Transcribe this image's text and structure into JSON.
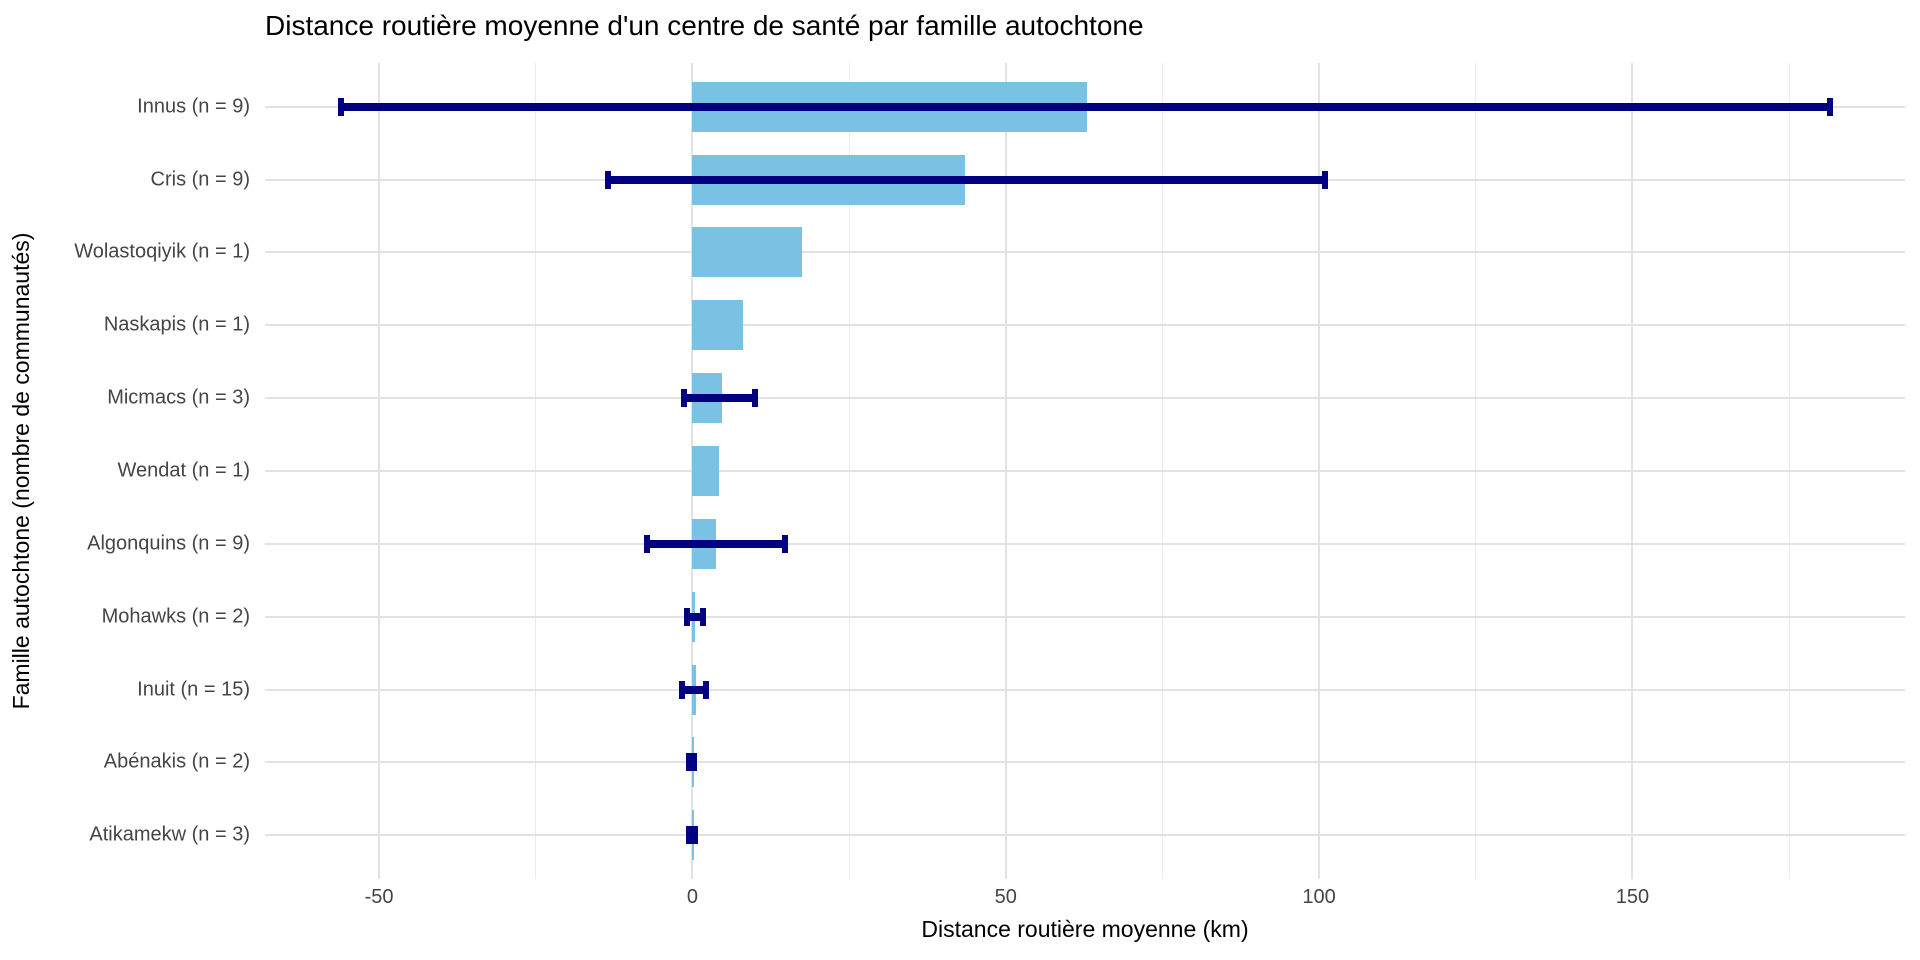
{
  "chart_data": {
    "type": "bar",
    "orientation": "horizontal",
    "title": "Distance routière moyenne d'un centre de santé par famille autochtone",
    "xlabel": "Distance routière moyenne (km)",
    "ylabel": "Famille autochtone (nombre de communautés)",
    "xlim": [
      -68.2,
      193.5
    ],
    "x_major_ticks": [
      -50,
      0,
      50,
      100,
      150
    ],
    "x_minor_ticks": [
      -25,
      25,
      75,
      125,
      175
    ],
    "grid": true,
    "legend": false,
    "colors": {
      "bar_fill": "#7AC2E3",
      "error_bar": "#000080",
      "grid_major": "#E2E2E2",
      "grid_minor": "#EBEBEB",
      "tick_text": "#454545",
      "title_text": "#000000"
    },
    "rows": [
      {
        "label": "Innus (n = 9)",
        "mean": 63,
        "lo": -56,
        "hi": 181.5
      },
      {
        "label": "Cris (n = 9)",
        "mean": 43.5,
        "lo": -13.5,
        "hi": 101
      },
      {
        "label": "Wolastoqiyik (n = 1)",
        "mean": 17.5,
        "lo": null,
        "hi": null
      },
      {
        "label": "Naskapis (n = 1)",
        "mean": 8,
        "lo": null,
        "hi": null
      },
      {
        "label": "Micmacs (n = 3)",
        "mean": 4.7,
        "lo": -1.3,
        "hi": 10
      },
      {
        "label": "Wendat (n = 1)",
        "mean": 4.2,
        "lo": null,
        "hi": null
      },
      {
        "label": "Algonquins (n = 9)",
        "mean": 3.8,
        "lo": -7.3,
        "hi": 14.8
      },
      {
        "label": "Mohawks (n = 2)",
        "mean": 0.4,
        "lo": -0.8,
        "hi": 1.7
      },
      {
        "label": "Inuit (n = 15)",
        "mean": 0.5,
        "lo": -1.6,
        "hi": 2.1
      },
      {
        "label": "Abénakis (n = 2)",
        "mean": 0.2,
        "lo": -0.5,
        "hi": 0.3
      },
      {
        "label": "Atikamekw (n = 3)",
        "mean": 0.3,
        "lo": -0.5,
        "hi": 0.4
      }
    ]
  }
}
